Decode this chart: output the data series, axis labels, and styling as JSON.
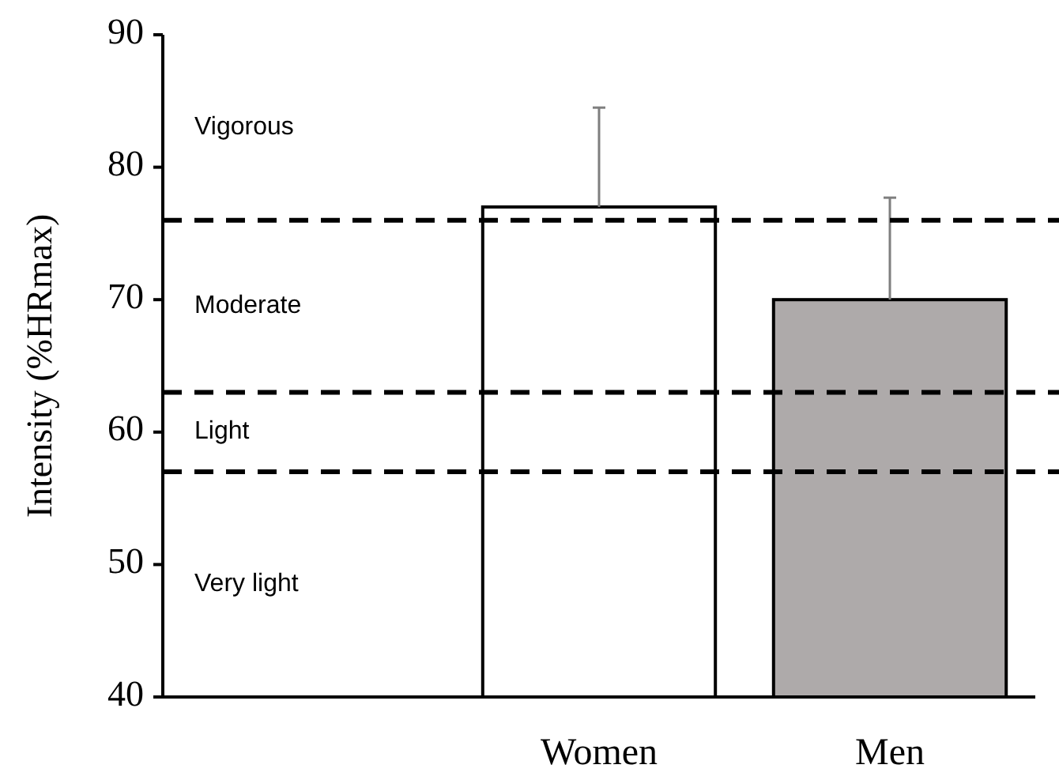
{
  "chart_data": {
    "type": "bar",
    "ylabel": "Intensity (%HRmax)",
    "categories": [
      null,
      "Women",
      "Men"
    ],
    "values": [
      null,
      77,
      70
    ],
    "colors": [
      null,
      "#ffffff",
      "#aeaaaa"
    ],
    "errors": [
      null,
      [
        77,
        84.5
      ],
      [
        70,
        77.7
      ]
    ],
    "ylim": [
      40,
      90
    ],
    "yticks": [
      40,
      50,
      60,
      70,
      80,
      90
    ],
    "grid": false,
    "ref_lines": [
      {
        "axis": "y",
        "value": 76,
        "color": "#000000",
        "line_style": "dashed"
      },
      {
        "axis": "y",
        "value": 63,
        "color": "#000000",
        "line_style": "dashed"
      },
      {
        "axis": "y",
        "value": 57,
        "color": "#000000",
        "line_style": "dashed"
      }
    ],
    "annotations": [
      "Vigorous",
      "Moderate",
      "Light",
      "Very light"
    ]
  }
}
